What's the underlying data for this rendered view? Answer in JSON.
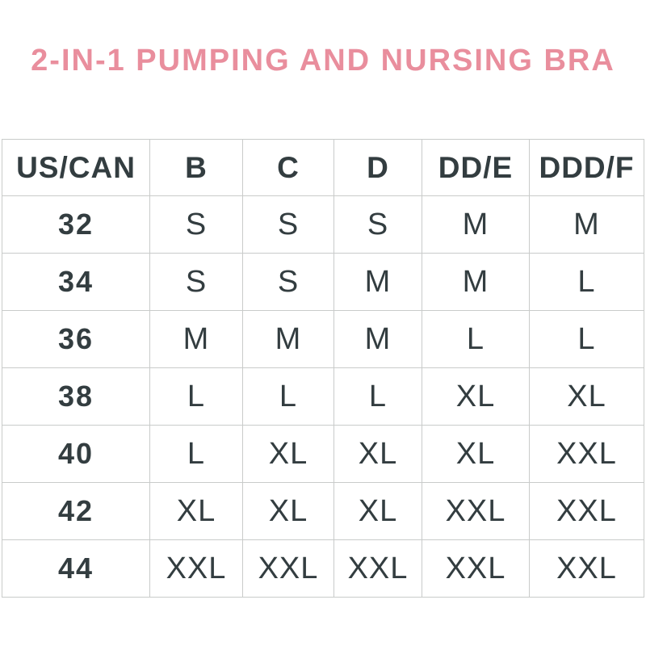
{
  "title": "2-IN-1 PUMPING AND NURSING BRA",
  "colors": {
    "title_pink": "#e98e9d",
    "table_text": "#333d40",
    "border_gray": "#c9cbca",
    "background": "#ffffff"
  },
  "chart_data": {
    "type": "table",
    "title": "2-IN-1 PUMPING AND NURSING BRA",
    "columns": [
      "US/CAN",
      "B",
      "C",
      "D",
      "DD/E",
      "DDD/F"
    ],
    "rows": [
      {
        "band": "32",
        "values": [
          "S",
          "S",
          "S",
          "M",
          "M"
        ]
      },
      {
        "band": "34",
        "values": [
          "S",
          "S",
          "M",
          "M",
          "L"
        ]
      },
      {
        "band": "36",
        "values": [
          "M",
          "M",
          "M",
          "L",
          "L"
        ]
      },
      {
        "band": "38",
        "values": [
          "L",
          "L",
          "L",
          "XL",
          "XL"
        ]
      },
      {
        "band": "40",
        "values": [
          "L",
          "XL",
          "XL",
          "XL",
          "XXL"
        ]
      },
      {
        "band": "42",
        "values": [
          "XL",
          "XL",
          "XL",
          "XXL",
          "XXL"
        ]
      },
      {
        "band": "44",
        "values": [
          "XXL",
          "XXL",
          "XXL",
          "XXL",
          "XXL"
        ]
      }
    ],
    "layout": {
      "grid": true,
      "header_row": true,
      "first_column_is_band_size": true
    }
  }
}
